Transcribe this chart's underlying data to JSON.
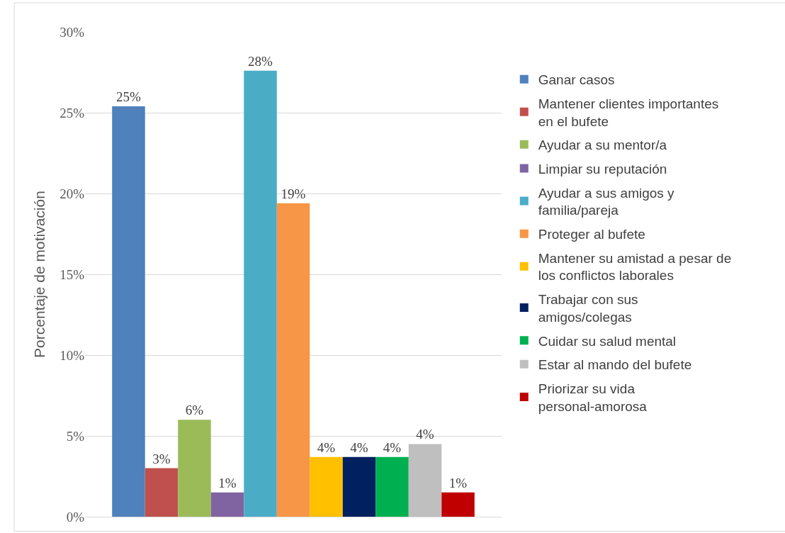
{
  "chart_data": {
    "type": "bar",
    "ylabel": "Porcentaje de motivación",
    "categories": [
      null
    ],
    "series": [
      {
        "name": "Ganar casos",
        "color": "#4f81bd",
        "values": [
          25.4
        ],
        "value_labels": [
          "25%"
        ]
      },
      {
        "name": "Mantener clientes importantes en el bufete",
        "color": "#c0504d",
        "values": [
          3.0
        ],
        "value_labels": [
          "3%"
        ]
      },
      {
        "name": "Ayudar a su mentor/a",
        "color": "#9bbb59",
        "values": [
          6.0
        ],
        "value_labels": [
          "6%"
        ]
      },
      {
        "name": "Limpiar su reputación",
        "color": "#8064a2",
        "values": [
          1.5
        ],
        "value_labels": [
          "1%"
        ]
      },
      {
        "name": "Ayudar a sus amigos y familia/pareja",
        "color": "#4bacc6",
        "values": [
          27.6
        ],
        "value_labels": [
          "28%"
        ]
      },
      {
        "name": "Proteger al bufete",
        "color": "#f79646",
        "values": [
          19.4
        ],
        "value_labels": [
          "19%"
        ]
      },
      {
        "name": "Mantener su amistad a pesar de los conflictos laborales",
        "color": "#ffc000",
        "values": [
          3.7
        ],
        "value_labels": [
          "4%"
        ]
      },
      {
        "name": "Trabajar con sus amigos/colegas",
        "color": "#002060",
        "values": [
          3.7
        ],
        "value_labels": [
          "4%"
        ]
      },
      {
        "name": "Cuidar su salud mental",
        "color": "#00b050",
        "values": [
          3.7
        ],
        "value_labels": [
          "4%"
        ]
      },
      {
        "name": "Estar al mando del bufete",
        "color": "#bfbfbf",
        "values": [
          4.5
        ],
        "value_labels": [
          "4%"
        ]
      },
      {
        "name": "Priorizar su vida personal-amorosa",
        "color": "#c00000",
        "values": [
          1.5
        ],
        "value_labels": [
          "1%"
        ]
      }
    ],
    "ylim": [
      0,
      30
    ],
    "yticks": [
      {
        "value": 0,
        "label": "0%"
      },
      {
        "value": 5,
        "label": "5%"
      },
      {
        "value": 10,
        "label": "10%"
      },
      {
        "value": 15,
        "label": "15%"
      },
      {
        "value": 20,
        "label": "20%"
      },
      {
        "value": 25,
        "label": "25%"
      },
      {
        "value": 30,
        "label": "30%"
      }
    ],
    "grid": "y",
    "legend": "right"
  }
}
